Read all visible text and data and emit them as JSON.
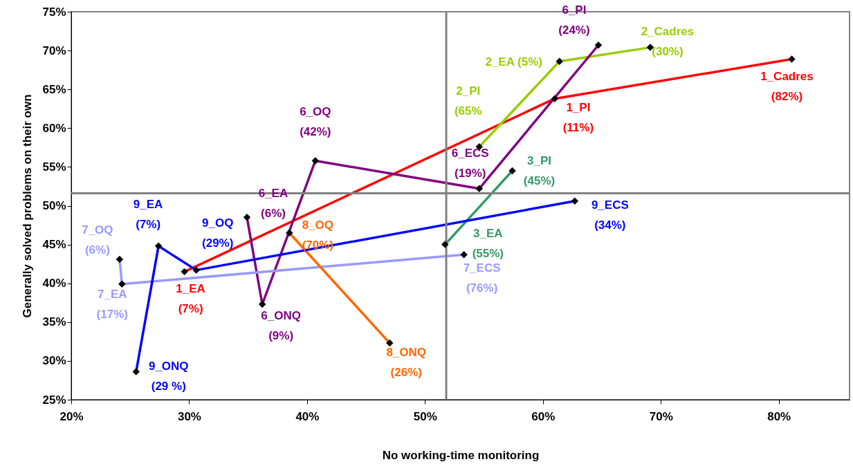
{
  "chart_data": {
    "type": "line",
    "xlabel": "No working-time monitoring",
    "ylabel": "Generally solved problems on their own",
    "marker": "diamond",
    "xlim": [
      20,
      86
    ],
    "ylim": [
      25,
      75
    ],
    "xticks": [
      {
        "value": 20,
        "label": "20%"
      },
      {
        "value": 30,
        "label": "30%"
      },
      {
        "value": 40,
        "label": "40%"
      },
      {
        "value": 50,
        "label": "50%"
      },
      {
        "value": 60,
        "label": "60%"
      },
      {
        "value": 70,
        "label": "70%"
      },
      {
        "value": 80,
        "label": "80%"
      }
    ],
    "yticks": [
      {
        "value": 25,
        "label": "25%"
      },
      {
        "value": 30,
        "label": "30%"
      },
      {
        "value": 35,
        "label": "35%"
      },
      {
        "value": 40,
        "label": "40%"
      },
      {
        "value": 45,
        "label": "45%"
      },
      {
        "value": 50,
        "label": "50%"
      },
      {
        "value": 55,
        "label": "55%"
      },
      {
        "value": 60,
        "label": "60%"
      },
      {
        "value": 65,
        "label": "65%"
      },
      {
        "value": 70,
        "label": "70%"
      },
      {
        "value": 75,
        "label": "75%"
      }
    ],
    "series": [
      {
        "color": "#ff0000",
        "x": [
          29.6,
          61.0,
          81.1
        ],
        "values": [
          41.5,
          63.8,
          68.9
        ]
      },
      {
        "color": "#99cc00",
        "x": [
          54.6,
          61.4,
          69.1
        ],
        "values": [
          57.6,
          68.6,
          70.4
        ]
      },
      {
        "color": "#339966",
        "x": [
          51.7,
          57.4
        ],
        "values": [
          45.0,
          54.5
        ]
      },
      {
        "color": "#800080",
        "x": [
          34.9,
          36.2,
          40.7,
          54.6,
          64.7
        ],
        "values": [
          48.5,
          37.3,
          55.8,
          52.2,
          70.7
        ]
      },
      {
        "color": "#9999ff",
        "x": [
          24.1,
          24.3,
          53.3
        ],
        "values": [
          43.1,
          39.9,
          43.7
        ]
      },
      {
        "color": "#ff6600",
        "x": [
          38.5,
          47.0
        ],
        "values": [
          46.5,
          32.3
        ]
      },
      {
        "color": "#0000ff",
        "x": [
          25.5,
          27.4,
          30.6,
          62.7
        ],
        "values": [
          28.6,
          44.8,
          41.7,
          50.6
        ]
      }
    ],
    "annotations": [
      {
        "text": "1_EA\n(7%)",
        "x": 29.6,
        "y": 41.5
      },
      {
        "text": "1_PI\n(11%)",
        "x": 61.0,
        "y": 63.8
      },
      {
        "text": "1_Cadres\n(82%)",
        "x": 81.1,
        "y": 68.9
      },
      {
        "text": "2_PI\n(65%",
        "x": 54.6,
        "y": 57.6
      },
      {
        "text": "2_EA (5%)",
        "x": 61.4,
        "y": 68.6
      },
      {
        "text": "2_Cadres\n(30%)",
        "x": 69.1,
        "y": 70.4
      },
      {
        "text": "3_EA\n(55%)",
        "x": 51.7,
        "y": 45.0
      },
      {
        "text": "3_PI\n(45%)",
        "x": 57.4,
        "y": 54.5
      },
      {
        "text": "6_EA\n(6%)",
        "x": 34.9,
        "y": 48.5
      },
      {
        "text": "6_ONQ\n(9%)",
        "x": 36.2,
        "y": 37.3
      },
      {
        "text": "6_OQ\n(42%)",
        "x": 40.7,
        "y": 55.8
      },
      {
        "text": "6_ECS\n(19%)",
        "x": 54.6,
        "y": 52.2
      },
      {
        "text": "6_PI\n(24%)",
        "x": 64.7,
        "y": 70.7
      },
      {
        "text": "7_OQ\n(6%)",
        "x": 24.1,
        "y": 43.1
      },
      {
        "text": "7_EA\n(17%)",
        "x": 24.3,
        "y": 39.9
      },
      {
        "text": "7_ECS\n(76%)",
        "x": 53.3,
        "y": 43.7
      },
      {
        "text": "8_OQ\n(70%)",
        "x": 38.5,
        "y": 46.5
      },
      {
        "text": "8_ONQ\n(26%)",
        "x": 47.0,
        "y": 32.3
      },
      {
        "text": "9_ONQ\n(29 %)",
        "x": 25.5,
        "y": 28.6
      },
      {
        "text": "9_EA\n(7%)",
        "x": 27.4,
        "y": 44.8
      },
      {
        "text": "9_OQ\n(29%)",
        "x": 30.6,
        "y": 41.7
      },
      {
        "text": "9_ECS\n(34%)",
        "x": 62.7,
        "y": 50.6
      }
    ],
    "ref_lines": [
      {
        "axis": "x",
        "value": 51.8,
        "color": "#808080"
      },
      {
        "axis": "y",
        "value": 51.6,
        "color": "#808080"
      }
    ]
  }
}
